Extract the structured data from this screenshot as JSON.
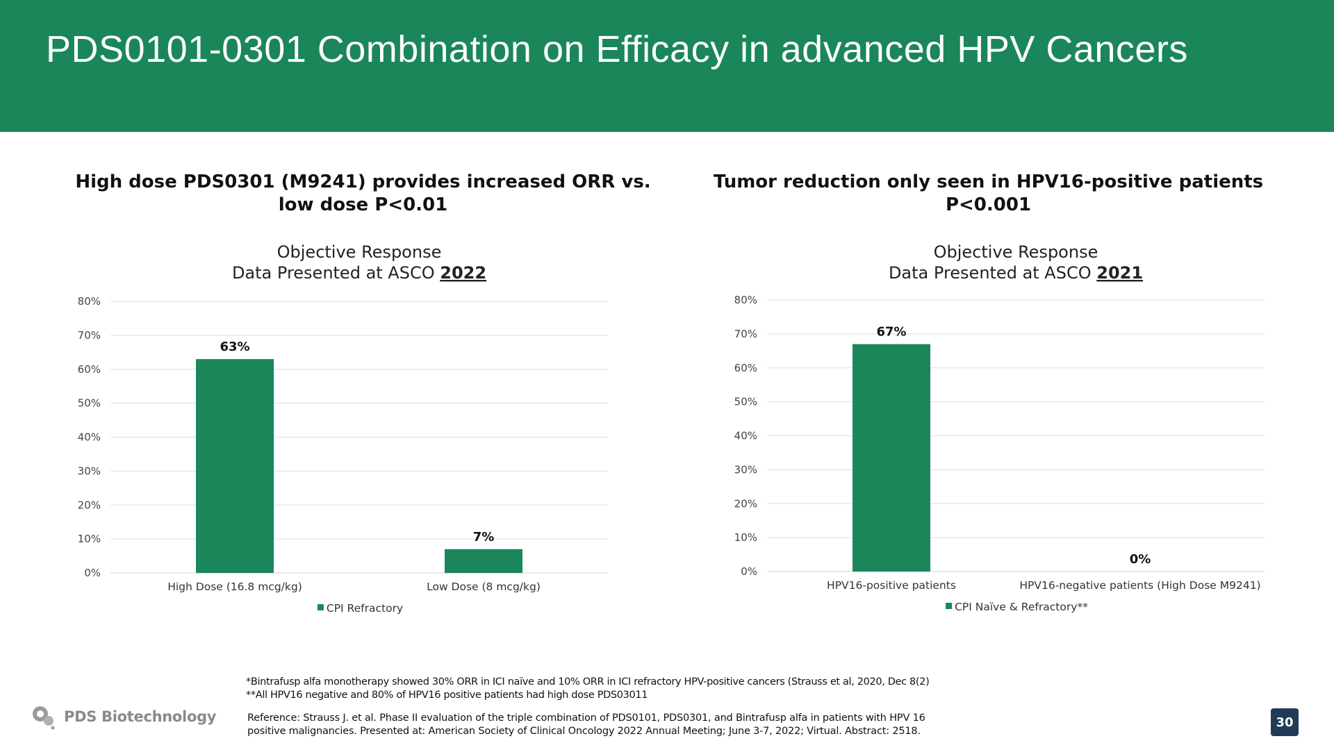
{
  "slide": {
    "title": "PDS0101-0301 Combination on Efficacy in advanced HPV Cancers",
    "page_number": "30",
    "header_color": "#1a865a",
    "logo_text": "PDS Biotechnology",
    "logo_icon": "pds-logo-icon"
  },
  "panels": [
    {
      "heading_line1": "High dose PDS0301 (M9241) provides increased ORR vs.",
      "heading_line2": "low dose P<0.01"
    },
    {
      "heading_line1": "Tumor reduction only seen in HPV16-positive patients",
      "heading_line2": "P<0.001"
    }
  ],
  "chart_data": [
    {
      "type": "bar",
      "title_line1": "Objective Response",
      "title_line2_prefix": "Data Presented at ASCO ",
      "title_line2_year": "2022",
      "categories": [
        "High Dose (16.8 mcg/kg)",
        "Low Dose (8 mcg/kg)"
      ],
      "series": [
        {
          "name": "CPI Refractory",
          "values": [
            63,
            7
          ],
          "color": "#1a865a"
        }
      ],
      "data_labels": [
        "63%",
        "7%"
      ],
      "ylim": [
        0,
        80
      ],
      "yticks": [
        0,
        10,
        20,
        30,
        40,
        50,
        60,
        70,
        80
      ],
      "ytick_labels": [
        "0%",
        "10%",
        "20%",
        "30%",
        "40%",
        "50%",
        "60%",
        "70%",
        "80%"
      ],
      "grid": true,
      "legend_position": "bottom"
    },
    {
      "type": "bar",
      "title_line1": "Objective Response",
      "title_line2_prefix": "Data Presented at ASCO ",
      "title_line2_year": "2021",
      "categories": [
        "HPV16-positive patients",
        "HPV16-negative patients (High Dose M9241)"
      ],
      "series": [
        {
          "name": "CPI Naïve & Refractory**",
          "values": [
            67,
            0
          ],
          "color": "#1a865a"
        }
      ],
      "data_labels": [
        "67%",
        "0%"
      ],
      "ylim": [
        0,
        80
      ],
      "yticks": [
        0,
        10,
        20,
        30,
        40,
        50,
        60,
        70,
        80
      ],
      "ytick_labels": [
        "0%",
        "10%",
        "20%",
        "30%",
        "40%",
        "50%",
        "60%",
        "70%",
        "80%"
      ],
      "grid": true,
      "legend_position": "bottom"
    }
  ],
  "footnotes": {
    "line1": "*Bintrafusp alfa monotherapy showed 30% ORR in ICI naïve and 10% ORR in ICI refractory HPV-positive cancers (Strauss et al, 2020, Dec 8(2)",
    "line2": "**All HPV16 negative and 80% of HPV16 positive patients had high dose PDS03011",
    "reference_line1": "Reference: Strauss J. et al. Phase II evaluation of the triple combination of PDS0101, PDS0301, and Bintrafusp alfa in patients with HPV 16",
    "reference_line2": "positive malignancies. Presented at: American Society of Clinical Oncology 2022 Annual Meeting; June 3-7, 2022; Virtual. Abstract: 2518."
  }
}
